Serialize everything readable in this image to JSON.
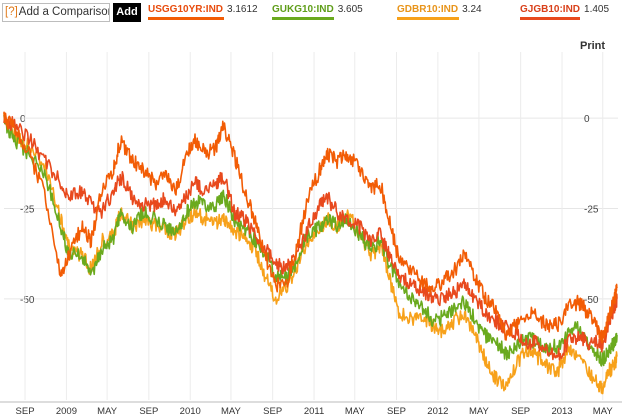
{
  "toolbar": {
    "help_label": "[?]",
    "compare_placeholder": "Add a Comparison",
    "add_label": "Add",
    "print_label": "Print"
  },
  "chart_data": {
    "type": "line",
    "xlim": [
      "2008-07-01",
      "2013-06-15"
    ],
    "ylim": [
      -78,
      10
    ],
    "yticks": [
      0,
      -25,
      -50
    ],
    "ytick_labels": [
      "0",
      "-25",
      "-50"
    ],
    "xticks": [
      "2008-09-01",
      "2009-01-01",
      "2009-05-01",
      "2009-09-01",
      "2010-01-01",
      "2010-05-01",
      "2010-09-01",
      "2011-01-01",
      "2011-05-01",
      "2011-09-01",
      "2012-01-01",
      "2012-05-01",
      "2012-09-01",
      "2013-01-01",
      "2013-05-01"
    ],
    "xtick_labels": [
      "SEP",
      "2009",
      "MAY",
      "SEP",
      "2010",
      "MAY",
      "SEP",
      "2011",
      "MAY",
      "SEP",
      "2012",
      "MAY",
      "SEP",
      "2013",
      "MAY"
    ],
    "grid": true,
    "legend": "top",
    "series": [
      {
        "name": "USGG10YR:IND",
        "value": "3.1612",
        "color": "#f25c05",
        "points": [
          [
            "2008-07-01",
            0
          ],
          [
            "2008-08-01",
            -3
          ],
          [
            "2008-09-15",
            -10
          ],
          [
            "2008-11-01",
            -22
          ],
          [
            "2008-12-15",
            -44
          ],
          [
            "2009-01-10",
            -38
          ],
          [
            "2009-02-15",
            -30
          ],
          [
            "2009-03-15",
            -34
          ],
          [
            "2009-04-15",
            -20
          ],
          [
            "2009-05-20",
            -14
          ],
          [
            "2009-06-10",
            -6
          ],
          [
            "2009-07-15",
            -12
          ],
          [
            "2009-08-15",
            -14
          ],
          [
            "2009-09-20",
            -18
          ],
          [
            "2009-10-20",
            -16
          ],
          [
            "2009-11-20",
            -20
          ],
          [
            "2009-12-20",
            -10
          ],
          [
            "2010-01-15",
            -6
          ],
          [
            "2010-02-15",
            -10
          ],
          [
            "2010-03-20",
            -8
          ],
          [
            "2010-04-10",
            -2
          ],
          [
            "2010-05-10",
            -10
          ],
          [
            "2010-06-10",
            -20
          ],
          [
            "2010-07-10",
            -28
          ],
          [
            "2010-08-10",
            -38
          ],
          [
            "2010-09-10",
            -46
          ],
          [
            "2010-10-10",
            -47
          ],
          [
            "2010-11-10",
            -36
          ],
          [
            "2010-12-15",
            -22
          ],
          [
            "2011-01-20",
            -14
          ],
          [
            "2011-02-10",
            -10
          ],
          [
            "2011-03-10",
            -12
          ],
          [
            "2011-04-10",
            -10
          ],
          [
            "2011-05-15",
            -14
          ],
          [
            "2011-06-15",
            -20
          ],
          [
            "2011-07-15",
            -18
          ],
          [
            "2011-08-10",
            -28
          ],
          [
            "2011-09-10",
            -40
          ],
          [
            "2011-10-20",
            -42
          ],
          [
            "2011-11-20",
            -46
          ],
          [
            "2011-12-20",
            -47
          ],
          [
            "2012-01-20",
            -45
          ],
          [
            "2012-02-20",
            -42
          ],
          [
            "2012-03-20",
            -38
          ],
          [
            "2012-04-20",
            -44
          ],
          [
            "2012-05-20",
            -50
          ],
          [
            "2012-06-20",
            -53
          ],
          [
            "2012-07-20",
            -60
          ],
          [
            "2012-08-20",
            -57
          ],
          [
            "2012-09-20",
            -54
          ],
          [
            "2012-10-20",
            -55
          ],
          [
            "2012-11-20",
            -58
          ],
          [
            "2012-12-20",
            -57
          ],
          [
            "2013-01-20",
            -52
          ],
          [
            "2013-02-20",
            -51
          ],
          [
            "2013-03-20",
            -54
          ],
          [
            "2013-04-20",
            -59
          ],
          [
            "2013-05-01",
            -61
          ],
          [
            "2013-05-20",
            -55
          ],
          [
            "2013-06-05",
            -50
          ],
          [
            "2013-06-12",
            -47
          ]
        ]
      },
      {
        "name": "GUKG10:IND",
        "value": "3.605",
        "color": "#6aaa1e",
        "points": [
          [
            "2008-07-01",
            -1
          ],
          [
            "2008-08-01",
            -6
          ],
          [
            "2008-09-15",
            -10
          ],
          [
            "2008-11-01",
            -16
          ],
          [
            "2008-12-15",
            -30
          ],
          [
            "2009-01-10",
            -38
          ],
          [
            "2009-02-15",
            -38
          ],
          [
            "2009-03-15",
            -44
          ],
          [
            "2009-04-15",
            -36
          ],
          [
            "2009-05-20",
            -34
          ],
          [
            "2009-06-10",
            -26
          ],
          [
            "2009-07-15",
            -30
          ],
          [
            "2009-08-15",
            -26
          ],
          [
            "2009-09-20",
            -28
          ],
          [
            "2009-10-20",
            -30
          ],
          [
            "2009-11-20",
            -32
          ],
          [
            "2009-12-20",
            -26
          ],
          [
            "2010-01-15",
            -23
          ],
          [
            "2010-02-15",
            -24
          ],
          [
            "2010-03-20",
            -24
          ],
          [
            "2010-04-10",
            -21
          ],
          [
            "2010-05-10",
            -28
          ],
          [
            "2010-06-10",
            -30
          ],
          [
            "2010-07-10",
            -34
          ],
          [
            "2010-08-10",
            -38
          ],
          [
            "2010-09-10",
            -43
          ],
          [
            "2010-10-10",
            -44
          ],
          [
            "2010-11-10",
            -40
          ],
          [
            "2010-12-15",
            -32
          ],
          [
            "2011-01-20",
            -30
          ],
          [
            "2011-02-10",
            -28
          ],
          [
            "2011-03-10",
            -30
          ],
          [
            "2011-04-10",
            -28
          ],
          [
            "2011-05-15",
            -32
          ],
          [
            "2011-06-15",
            -36
          ],
          [
            "2011-07-15",
            -34
          ],
          [
            "2011-08-10",
            -40
          ],
          [
            "2011-09-10",
            -46
          ],
          [
            "2011-10-20",
            -50
          ],
          [
            "2011-11-20",
            -53
          ],
          [
            "2011-12-20",
            -56
          ],
          [
            "2012-01-20",
            -55
          ],
          [
            "2012-02-20",
            -52
          ],
          [
            "2012-03-20",
            -51
          ],
          [
            "2012-04-20",
            -56
          ],
          [
            "2012-05-20",
            -60
          ],
          [
            "2012-06-20",
            -62
          ],
          [
            "2012-07-20",
            -65
          ],
          [
            "2012-08-20",
            -63
          ],
          [
            "2012-09-20",
            -61
          ],
          [
            "2012-10-20",
            -62
          ],
          [
            "2012-11-20",
            -64
          ],
          [
            "2012-12-20",
            -63
          ],
          [
            "2013-01-20",
            -59
          ],
          [
            "2013-02-20",
            -58
          ],
          [
            "2013-03-20",
            -62
          ],
          [
            "2013-04-20",
            -66
          ],
          [
            "2013-05-01",
            -67
          ],
          [
            "2013-05-20",
            -64
          ],
          [
            "2013-06-05",
            -62
          ],
          [
            "2013-06-12",
            -60
          ]
        ]
      },
      {
        "name": "GDBR10:IND",
        "value": "3.24",
        "color": "#f7a11a",
        "points": [
          [
            "2008-07-01",
            0
          ],
          [
            "2008-08-01",
            -5
          ],
          [
            "2008-09-15",
            -8
          ],
          [
            "2008-11-01",
            -14
          ],
          [
            "2008-12-15",
            -28
          ],
          [
            "2009-01-10",
            -36
          ],
          [
            "2009-02-15",
            -38
          ],
          [
            "2009-03-15",
            -42
          ],
          [
            "2009-04-15",
            -34
          ],
          [
            "2009-05-20",
            -32
          ],
          [
            "2009-06-10",
            -26
          ],
          [
            "2009-07-15",
            -30
          ],
          [
            "2009-08-15",
            -28
          ],
          [
            "2009-09-20",
            -30
          ],
          [
            "2009-10-20",
            -31
          ],
          [
            "2009-11-20",
            -32
          ],
          [
            "2009-12-20",
            -28
          ],
          [
            "2010-01-15",
            -26
          ],
          [
            "2010-02-15",
            -28
          ],
          [
            "2010-03-20",
            -29
          ],
          [
            "2010-04-10",
            -28
          ],
          [
            "2010-05-10",
            -31
          ],
          [
            "2010-06-10",
            -33
          ],
          [
            "2010-07-10",
            -36
          ],
          [
            "2010-08-10",
            -44
          ],
          [
            "2010-09-10",
            -50
          ],
          [
            "2010-10-10",
            -47
          ],
          [
            "2010-11-10",
            -42
          ],
          [
            "2010-12-15",
            -34
          ],
          [
            "2011-01-20",
            -30
          ],
          [
            "2011-02-10",
            -28
          ],
          [
            "2011-03-10",
            -30
          ],
          [
            "2011-04-10",
            -26
          ],
          [
            "2011-05-15",
            -32
          ],
          [
            "2011-06-15",
            -38
          ],
          [
            "2011-07-15",
            -36
          ],
          [
            "2011-08-10",
            -44
          ],
          [
            "2011-09-10",
            -54
          ],
          [
            "2011-10-20",
            -56
          ],
          [
            "2011-11-20",
            -55
          ],
          [
            "2011-12-20",
            -58
          ],
          [
            "2012-01-20",
            -59
          ],
          [
            "2012-02-20",
            -56
          ],
          [
            "2012-03-20",
            -54
          ],
          [
            "2012-04-20",
            -60
          ],
          [
            "2012-05-20",
            -67
          ],
          [
            "2012-06-20",
            -72
          ],
          [
            "2012-07-20",
            -75
          ],
          [
            "2012-08-20",
            -68
          ],
          [
            "2012-09-20",
            -64
          ],
          [
            "2012-10-20",
            -66
          ],
          [
            "2012-11-20",
            -69
          ],
          [
            "2012-12-20",
            -70
          ],
          [
            "2013-01-20",
            -64
          ],
          [
            "2013-02-20",
            -66
          ],
          [
            "2013-03-20",
            -70
          ],
          [
            "2013-04-20",
            -74
          ],
          [
            "2013-05-01",
            -75
          ],
          [
            "2013-05-20",
            -70
          ],
          [
            "2013-06-05",
            -68
          ],
          [
            "2013-06-12",
            -66
          ]
        ]
      },
      {
        "name": "GJGB10:IND",
        "value": "1.405",
        "color": "#e8491d",
        "points": [
          [
            "2008-07-01",
            0
          ],
          [
            "2008-08-01",
            -2
          ],
          [
            "2008-09-15",
            -6
          ],
          [
            "2008-11-01",
            -12
          ],
          [
            "2008-12-15",
            -18
          ],
          [
            "2009-01-10",
            -22
          ],
          [
            "2009-02-15",
            -20
          ],
          [
            "2009-03-15",
            -24
          ],
          [
            "2009-04-15",
            -26
          ],
          [
            "2009-05-20",
            -20
          ],
          [
            "2009-06-10",
            -16
          ],
          [
            "2009-07-15",
            -22
          ],
          [
            "2009-08-15",
            -24
          ],
          [
            "2009-09-20",
            -24
          ],
          [
            "2009-10-20",
            -22
          ],
          [
            "2009-11-20",
            -26
          ],
          [
            "2009-12-20",
            -22
          ],
          [
            "2010-01-15",
            -18
          ],
          [
            "2010-02-15",
            -20
          ],
          [
            "2010-03-20",
            -18
          ],
          [
            "2010-04-10",
            -16
          ],
          [
            "2010-05-10",
            -26
          ],
          [
            "2010-06-10",
            -28
          ],
          [
            "2010-07-10",
            -32
          ],
          [
            "2010-08-10",
            -36
          ],
          [
            "2010-09-10",
            -40
          ],
          [
            "2010-10-10",
            -42
          ],
          [
            "2010-11-10",
            -38
          ],
          [
            "2010-12-15",
            -30
          ],
          [
            "2011-01-20",
            -24
          ],
          [
            "2011-02-10",
            -22
          ],
          [
            "2011-03-10",
            -26
          ],
          [
            "2011-04-10",
            -28
          ],
          [
            "2011-05-15",
            -30
          ],
          [
            "2011-06-15",
            -34
          ],
          [
            "2011-07-15",
            -32
          ],
          [
            "2011-08-10",
            -38
          ],
          [
            "2011-09-10",
            -44
          ],
          [
            "2011-10-20",
            -46
          ],
          [
            "2011-11-20",
            -48
          ],
          [
            "2011-12-20",
            -50
          ],
          [
            "2012-01-20",
            -50
          ],
          [
            "2012-02-20",
            -48
          ],
          [
            "2012-03-20",
            -46
          ],
          [
            "2012-04-20",
            -50
          ],
          [
            "2012-05-20",
            -54
          ],
          [
            "2012-06-20",
            -56
          ],
          [
            "2012-07-20",
            -58
          ],
          [
            "2012-08-20",
            -60
          ],
          [
            "2012-09-20",
            -62
          ],
          [
            "2012-10-20",
            -62
          ],
          [
            "2012-11-20",
            -64
          ],
          [
            "2012-12-20",
            -66
          ],
          [
            "2013-01-20",
            -62
          ],
          [
            "2013-02-20",
            -60
          ],
          [
            "2013-03-20",
            -62
          ],
          [
            "2013-04-20",
            -62
          ],
          [
            "2013-05-01",
            -63
          ],
          [
            "2013-05-20",
            -56
          ],
          [
            "2013-06-05",
            -52
          ],
          [
            "2013-06-12",
            -50
          ]
        ]
      }
    ]
  }
}
